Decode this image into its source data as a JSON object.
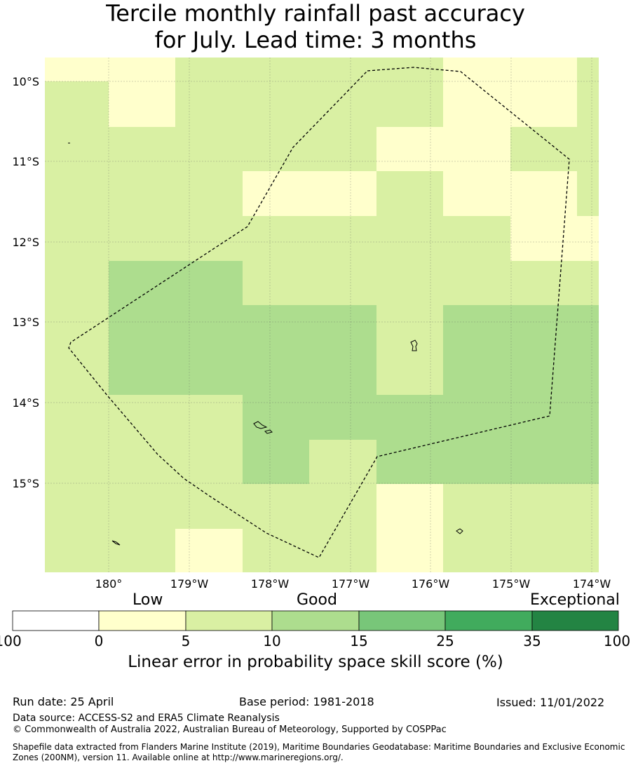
{
  "title_line1": "Tercile monthly rainfall past accuracy",
  "title_line2": "for July. Lead time: 3 months",
  "colors": {
    "low": "#ffffcc",
    "good_low": "#d9f0a3",
    "good_mid": "#addd8e",
    "good_high": "#78c679",
    "exc_low": "#41ab5d",
    "exc_high": "#238443",
    "zero": "#ffffff"
  },
  "map": {
    "lat_labels": [
      "10°S",
      "11°S",
      "12°S",
      "13°S",
      "14°S",
      "15°S"
    ],
    "lon_labels": [
      "180°",
      "179°W",
      "178°W",
      "177°W",
      "176°W",
      "175°W",
      "174°W"
    ],
    "grid": [
      "LLGGGGLLG",
      "GLGGGGLLG",
      "GGGGGLLGG",
      "GGGLLGLLG",
      "GGGGGGGLL",
      "GMMGGGGGG",
      "GMMMMGMMM",
      "GMMMMGMMM",
      "GGGMMMMMM",
      "GGGMGMMMM",
      "GGGGGLGGG",
      "GGLGGLGGG"
    ]
  },
  "colorbar": {
    "category_labels": [
      "Low",
      "Good",
      "Exceptional"
    ],
    "ticks": [
      "-100",
      "0",
      "5",
      "10",
      "15",
      "25",
      "35",
      "100"
    ],
    "title": "Linear error in probability space skill score (%)"
  },
  "footer": {
    "run_date": "Run date: 25 April",
    "base_period": "Base period: 1981-2018",
    "issued": "Issued: 11/01/2022",
    "data_source": "Data source: ACCESS-S2 and ERA5 Climate Reanalysis",
    "copyright": "© Commonwealth of Australia 2022, Australian Bureau of Meteorology, Supported by COSPPac",
    "shapefile": "Shapefile data extracted from Flanders Marine Institute (2019), Maritime Boundaries Geodatabase: Maritime Boundaries and Exclusive Economic Zones (200NM), version 11. Available online at http://www.marineregions.org/."
  }
}
